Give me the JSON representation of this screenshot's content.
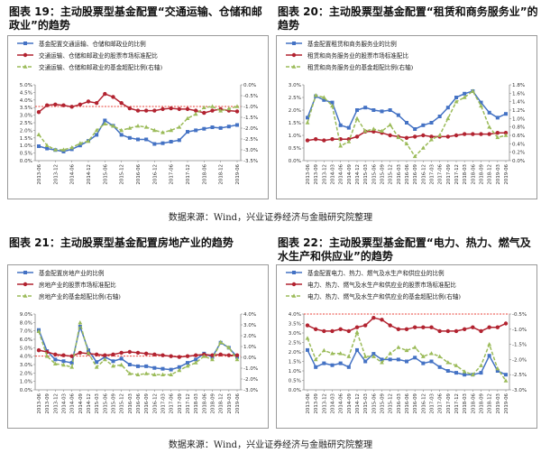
{
  "source_text": "数据来源：Wind，兴业证券经济与金融研究院整理",
  "colors": {
    "blue": "#4472c4",
    "red": "#b22330",
    "green": "#9bbb59",
    "redline": "#e8433a"
  },
  "chart_data": [
    {
      "title": "图表 19：主动股票型基金配置“交通运输、仓储和邮政业”的趋势",
      "type": "line",
      "x": [
        "2013-06",
        "2013-09",
        "2013-12",
        "2014-03",
        "2014-06",
        "2014-09",
        "2014-12",
        "2015-03",
        "2015-06",
        "2015-09",
        "2015-12",
        "2016-03",
        "2016-06",
        "2016-09",
        "2016-12",
        "2017-03",
        "2017-06",
        "2017-09",
        "2017-12",
        "2018-03",
        "2018-06",
        "2018-09",
        "2018-12",
        "2019-03",
        "2019-06"
      ],
      "xticks": [
        "2013-06",
        "2013-12",
        "2014-06",
        "2014-12",
        "2015-06",
        "2015-12",
        "2016-06",
        "2016-12",
        "2017-06",
        "2017-12",
        "2018-06",
        "2018-12",
        "2019-06"
      ],
      "series": [
        {
          "name": "基金配置交通运输、仓储和邮政业的比例",
          "axis": "left",
          "color": "#4472c4",
          "style": "line",
          "marker": "square",
          "values": [
            0.95,
            0.8,
            0.7,
            0.6,
            0.75,
            1.0,
            1.3,
            1.7,
            2.65,
            2.3,
            1.7,
            1.5,
            1.4,
            1.4,
            1.1,
            1.15,
            1.25,
            1.35,
            1.9,
            2.0,
            2.1,
            2.2,
            2.15,
            2.25,
            2.35
          ]
        },
        {
          "name": "交通运输、仓储和邮政业的股票市场标准配比",
          "axis": "left",
          "color": "#b22330",
          "style": "line",
          "marker": "circle",
          "values": [
            3.2,
            3.65,
            3.7,
            3.65,
            3.55,
            3.7,
            3.9,
            3.8,
            4.4,
            4.2,
            3.8,
            3.45,
            3.3,
            3.3,
            3.3,
            3.4,
            3.45,
            3.4,
            3.4,
            3.3,
            3.15,
            3.3,
            3.4,
            3.3,
            3.25
          ]
        },
        {
          "name": "交通运输、仓储和邮政业的基金超配比例(右轴)",
          "axis": "right",
          "color": "#9bbb59",
          "style": "dash",
          "marker": "triangle",
          "values": [
            -2.3,
            -2.8,
            -3.0,
            -3.0,
            -2.9,
            -2.7,
            -2.6,
            -2.1,
            -1.8,
            -1.9,
            -2.1,
            -2.0,
            -1.9,
            -1.95,
            -2.1,
            -2.2,
            -2.1,
            -1.95,
            -1.55,
            -1.35,
            -1.05,
            -1.0,
            -1.2,
            -1.1,
            -1.0
          ]
        }
      ],
      "yleft": {
        "min": 0,
        "max": 5.0,
        "ticks": [
          "0.0%",
          "0.5%",
          "1.0%",
          "1.5%",
          "2.0%",
          "2.5%",
          "3.0%",
          "3.5%",
          "4.0%",
          "4.5%",
          "5.0%"
        ]
      },
      "yright": {
        "min": -3.5,
        "max": 0.0,
        "ticks": [
          "-3.5%",
          "-3.0%",
          "-2.5%",
          "-2.0%",
          "-1.5%",
          "-1.0%",
          "-0.5%",
          "0.0%"
        ]
      },
      "refline": {
        "axis": "right",
        "value": -1.0
      }
    },
    {
      "title": "图表 20：主动股票型基金配置“租赁和商务服务业”的趋势",
      "type": "line",
      "x": [
        "2013-06",
        "2013-09",
        "2013-12",
        "2014-03",
        "2014-06",
        "2014-09",
        "2014-12",
        "2015-03",
        "2015-06",
        "2015-09",
        "2015-12",
        "2016-03",
        "2016-06",
        "2016-09",
        "2016-12",
        "2017-03",
        "2017-06",
        "2017-09",
        "2017-12",
        "2018-03",
        "2018-06",
        "2018-09",
        "2018-12",
        "2019-03",
        "2019-06"
      ],
      "xticks": [
        "2013-06",
        "2013-09",
        "2013-12",
        "2014-03",
        "2014-06",
        "2014-09",
        "2014-12",
        "2015-03",
        "2015-06",
        "2015-09",
        "2015-12",
        "2016-03",
        "2016-06",
        "2016-09",
        "2016-12",
        "2017-03",
        "2017-06",
        "2017-09",
        "2017-12",
        "2018-03",
        "2018-06",
        "2018-09",
        "2018-12",
        "2019-03",
        "2019-06"
      ],
      "series": [
        {
          "name": "基金配置租赁和商务服务业的比例",
          "axis": "left",
          "color": "#4472c4",
          "style": "line",
          "marker": "square",
          "values": [
            1.7,
            2.55,
            2.4,
            2.3,
            1.4,
            1.3,
            2.0,
            2.1,
            2.0,
            1.95,
            2.0,
            1.8,
            1.5,
            1.25,
            1.4,
            1.5,
            1.75,
            2.1,
            2.5,
            2.65,
            2.75,
            2.3,
            1.9,
            1.7,
            1.85
          ]
        },
        {
          "name": "租赁和商务服务业的股票市场标准配比",
          "axis": "left",
          "color": "#b22330",
          "style": "line",
          "marker": "circle",
          "values": [
            0.8,
            0.85,
            0.8,
            0.85,
            0.85,
            0.85,
            0.95,
            1.15,
            1.15,
            1.1,
            1.0,
            0.95,
            0.9,
            0.95,
            1.0,
            0.95,
            0.95,
            0.95,
            1.0,
            1.05,
            1.05,
            1.05,
            1.05,
            1.1,
            1.1
          ]
        },
        {
          "name": "租赁和商务服务业的基金超配比例(右轴)",
          "axis": "right",
          "color": "#9bbb59",
          "style": "dash",
          "marker": "triangle",
          "values": [
            0.9,
            1.55,
            1.5,
            1.3,
            0.35,
            0.45,
            1.0,
            0.7,
            0.75,
            0.7,
            0.85,
            0.55,
            0.4,
            0.1,
            0.3,
            0.5,
            0.6,
            1.0,
            1.4,
            1.5,
            1.65,
            1.3,
            0.8,
            0.55,
            0.6
          ]
        }
      ],
      "yleft": {
        "min": 0,
        "max": 3.0,
        "ticks": [
          "0.0%",
          "0.5%",
          "1.0%",
          "1.5%",
          "2.0%",
          "2.5%",
          "3.0%"
        ]
      },
      "yright": {
        "min": 0,
        "max": 1.8,
        "ticks": [
          "0.0%",
          "0.2%",
          "0.4%",
          "0.6%",
          "0.8%",
          "1.0%",
          "1.2%",
          "1.4%",
          "1.6%",
          "1.8%"
        ]
      },
      "refline": null
    },
    {
      "title": "图表 21：主动股票型基金配置房地产业的趋势",
      "type": "line",
      "x": [
        "2013-06",
        "2013-09",
        "2013-12",
        "2014-03",
        "2014-06",
        "2014-09",
        "2014-12",
        "2015-03",
        "2015-06",
        "2015-09",
        "2015-12",
        "2016-03",
        "2016-06",
        "2016-09",
        "2016-12",
        "2017-03",
        "2017-06",
        "2017-09",
        "2017-12",
        "2018-03",
        "2018-06",
        "2018-09",
        "2018-12",
        "2019-03",
        "2019-06"
      ],
      "xticks": [
        "2013-06",
        "2013-09",
        "2013-12",
        "2014-03",
        "2014-06",
        "2014-09",
        "2014-12",
        "2015-03",
        "2015-06",
        "2015-09",
        "2015-12",
        "2016-03",
        "2016-06",
        "2016-09",
        "2016-12",
        "2017-03",
        "2017-06",
        "2017-09",
        "2017-12",
        "2018-03",
        "2018-06",
        "2018-09",
        "2018-12",
        "2019-03",
        "2019-06"
      ],
      "series": [
        {
          "name": "基金配置房地产业的比例",
          "axis": "left",
          "color": "#4472c4",
          "style": "line",
          "marker": "square",
          "values": [
            7.1,
            4.6,
            3.6,
            3.4,
            3.2,
            7.5,
            4.7,
            3.3,
            3.9,
            3.4,
            3.7,
            3.0,
            2.8,
            2.8,
            2.6,
            2.5,
            2.4,
            2.7,
            3.2,
            3.6,
            4.3,
            3.9,
            5.6,
            5.0,
            3.9
          ]
        },
        {
          "name": "房地产业的股票市场标准配比",
          "axis": "left",
          "color": "#b22330",
          "style": "line",
          "marker": "circle",
          "values": [
            4.7,
            4.5,
            4.2,
            4.1,
            4.0,
            4.4,
            4.3,
            4.2,
            4.1,
            4.2,
            4.4,
            4.5,
            4.4,
            4.3,
            4.2,
            4.1,
            4.0,
            3.9,
            4.0,
            4.1,
            4.2,
            4.1,
            4.2,
            4.1,
            4.1
          ]
        },
        {
          "name": "房地产业的基金超配比例(右轴)",
          "axis": "right",
          "color": "#9bbb59",
          "style": "dash",
          "marker": "triangle",
          "values": [
            2.4,
            0.1,
            -0.6,
            -0.7,
            -0.9,
            3.2,
            0.4,
            -0.9,
            -0.2,
            -0.8,
            -0.7,
            -1.5,
            -1.6,
            -1.5,
            -1.6,
            -1.6,
            -1.6,
            -1.2,
            -0.8,
            -0.5,
            0.1,
            -0.2,
            1.4,
            0.9,
            -0.2
          ]
        }
      ],
      "yleft": {
        "min": 0,
        "max": 9.0,
        "ticks": [
          "0.0%",
          "1.0%",
          "2.0%",
          "3.0%",
          "4.0%",
          "5.0%",
          "6.0%",
          "7.0%",
          "8.0%",
          "9.0%"
        ]
      },
      "yright": {
        "min": -3.0,
        "max": 4.0,
        "ticks": [
          "-3.0%",
          "-2.0%",
          "-1.0%",
          "0.0%",
          "1.0%",
          "2.0%",
          "3.0%",
          "4.0%"
        ]
      },
      "refline": {
        "axis": "left",
        "value": 4.0
      }
    },
    {
      "title": "图表 22：主动股票型基金配置“电力、热力、燃气及水生产和供应业”的趋势",
      "type": "line",
      "x": [
        "2013-06",
        "2013-09",
        "2013-12",
        "2014-03",
        "2014-06",
        "2014-09",
        "2014-12",
        "2015-03",
        "2015-06",
        "2015-09",
        "2015-12",
        "2016-03",
        "2016-06",
        "2016-09",
        "2016-12",
        "2017-03",
        "2017-06",
        "2017-09",
        "2017-12",
        "2018-03",
        "2018-06",
        "2018-09",
        "2018-12",
        "2019-03",
        "2019-06"
      ],
      "xticks": [
        "2013-06",
        "2013-09",
        "2013-12",
        "2014-03",
        "2014-06",
        "2014-09",
        "2014-12",
        "2015-03",
        "2015-06",
        "2015-09",
        "2015-12",
        "2016-03",
        "2016-06",
        "2016-09",
        "2016-12",
        "2017-03",
        "2017-06",
        "2017-09",
        "2017-12",
        "2018-03",
        "2018-06",
        "2018-09",
        "2018-12",
        "2019-03",
        "2019-06"
      ],
      "series": [
        {
          "name": "基金配置电力、热力、燃气及水生产和供应业的比例",
          "axis": "left",
          "color": "#4472c4",
          "style": "line",
          "marker": "square",
          "values": [
            2.1,
            1.2,
            1.4,
            1.3,
            1.4,
            1.2,
            2.1,
            1.5,
            1.9,
            1.6,
            1.6,
            1.6,
            1.5,
            1.7,
            1.4,
            1.5,
            1.2,
            1.0,
            0.9,
            0.8,
            0.8,
            0.9,
            1.8,
            1.0,
            0.8
          ]
        },
        {
          "name": "电力、热力、燃气及水生产和供应业的股票市场标准配比",
          "axis": "left",
          "color": "#b22330",
          "style": "line",
          "marker": "circle",
          "values": [
            3.4,
            3.2,
            3.1,
            3.1,
            3.2,
            3.1,
            3.3,
            3.4,
            3.8,
            3.7,
            3.4,
            3.2,
            3.2,
            3.3,
            3.3,
            3.3,
            3.1,
            3.1,
            3.1,
            3.2,
            3.3,
            3.1,
            3.3,
            3.3,
            3.5
          ]
        },
        {
          "name": "电力、热力、燃气及水生产和供应业的基金超配比例(右轴)",
          "axis": "right",
          "color": "#9bbb59",
          "style": "dash",
          "marker": "triangle",
          "values": [
            -1.3,
            -2.0,
            -1.7,
            -1.8,
            -1.8,
            -1.9,
            -1.1,
            -1.9,
            -1.9,
            -2.1,
            -1.8,
            -1.6,
            -1.7,
            -1.6,
            -1.9,
            -1.8,
            -1.9,
            -2.1,
            -2.2,
            -2.4,
            -2.5,
            -2.2,
            -1.5,
            -2.3,
            -2.7
          ]
        }
      ],
      "yleft": {
        "min": 0,
        "max": 4.0,
        "ticks": [
          "0.0%",
          "0.5%",
          "1.0%",
          "1.5%",
          "2.0%",
          "2.5%",
          "3.0%",
          "3.5%",
          "4.0%"
        ]
      },
      "yright": {
        "min": -3.0,
        "max": -0.5,
        "ticks": [
          "-3.0%",
          "-2.5%",
          "-2.0%",
          "-1.5%",
          "-1.0%",
          "-0.5%"
        ]
      },
      "refline": {
        "axis": "right",
        "value": -0.5
      }
    }
  ]
}
